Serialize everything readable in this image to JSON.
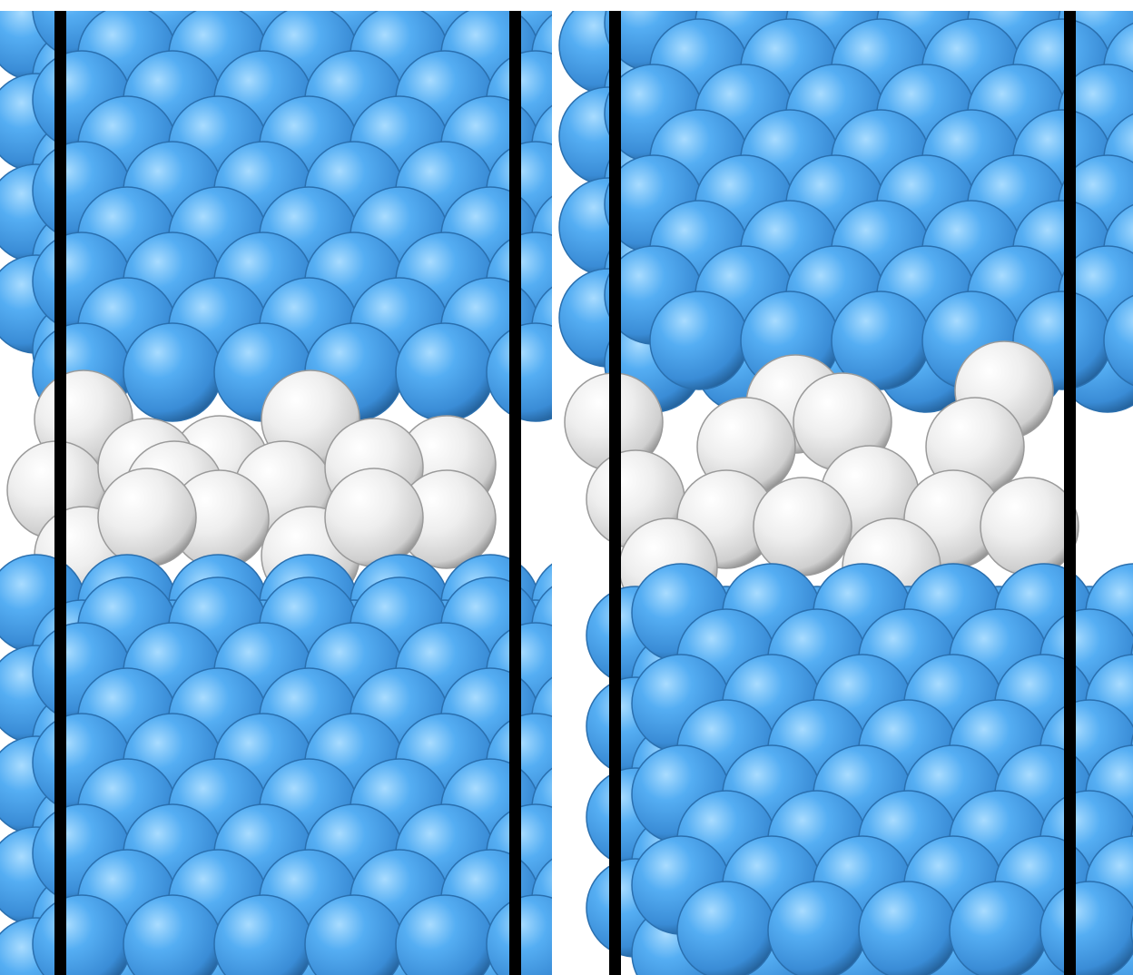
{
  "figure": {
    "panels": [
      {
        "id": "left",
        "boundary": "straight"
      },
      {
        "id": "right",
        "boundary": "kinked"
      }
    ],
    "atom_types": [
      {
        "id": "host",
        "color": "#4aa3ee",
        "highlight": "#8fd0ff",
        "shadow": "#1f5f96"
      },
      {
        "id": "interface",
        "color": "#e8e8e8",
        "highlight": "#ffffff",
        "shadow": "#8a8a8a"
      }
    ],
    "frame_color": "#000000"
  }
}
